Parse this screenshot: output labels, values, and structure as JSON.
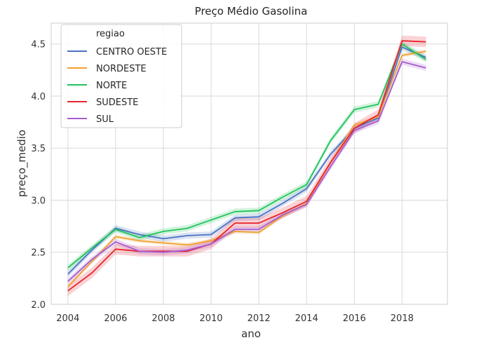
{
  "chart_data": {
    "type": "line",
    "title": "Preço Médio Gasolina",
    "xlabel": "ano",
    "ylabel": "preço_medio",
    "xlim": [
      2003.3,
      2019.9
    ],
    "ylim": [
      2.0,
      4.7
    ],
    "xticks": [
      2004,
      2006,
      2008,
      2010,
      2012,
      2014,
      2016,
      2018
    ],
    "xtick_labels": [
      "2004",
      "2006",
      "2008",
      "2010",
      "2012",
      "2014",
      "2016",
      "2018"
    ],
    "yticks": [
      2.0,
      2.5,
      3.0,
      3.5,
      4.0,
      4.5
    ],
    "ytick_labels": [
      "2.0",
      "2.5",
      "3.0",
      "3.5",
      "4.0",
      "4.5"
    ],
    "grid": true,
    "legend": {
      "title": "regiao",
      "placement": "top-left"
    },
    "x": [
      2004,
      2005,
      2006,
      2007,
      2008,
      2009,
      2010,
      2011,
      2012,
      2013,
      2014,
      2015,
      2016,
      2017,
      2018,
      2019
    ],
    "series": [
      {
        "name": "CENTRO OESTE",
        "color": "#4c72c4",
        "band": 0.03,
        "values": [
          2.29,
          2.52,
          2.73,
          2.67,
          2.63,
          2.66,
          2.67,
          2.83,
          2.84,
          2.97,
          3.11,
          3.44,
          3.69,
          3.79,
          4.47,
          4.37
        ]
      },
      {
        "name": "NORDESTE",
        "color": "#f0a030",
        "band": 0.02,
        "values": [
          2.17,
          2.41,
          2.65,
          2.61,
          2.59,
          2.57,
          2.61,
          2.7,
          2.69,
          2.85,
          2.97,
          3.36,
          3.72,
          3.8,
          4.39,
          4.43
        ]
      },
      {
        "name": "NORTE",
        "color": "#1fc45a",
        "band": 0.03,
        "values": [
          2.35,
          2.54,
          2.72,
          2.64,
          2.7,
          2.73,
          2.81,
          2.89,
          2.9,
          3.03,
          3.15,
          3.57,
          3.87,
          3.92,
          4.5,
          4.35
        ]
      },
      {
        "name": "SUDESTE",
        "color": "#e8242e",
        "band": 0.05,
        "values": [
          2.13,
          2.3,
          2.53,
          2.51,
          2.51,
          2.51,
          2.58,
          2.78,
          2.78,
          2.88,
          2.99,
          3.36,
          3.69,
          3.82,
          4.53,
          4.52
        ]
      },
      {
        "name": "SUL",
        "color": "#a55cd0",
        "band": 0.03,
        "values": [
          2.22,
          2.43,
          2.6,
          2.51,
          2.5,
          2.52,
          2.58,
          2.72,
          2.72,
          2.86,
          2.96,
          3.32,
          3.67,
          3.76,
          4.33,
          4.27
        ]
      }
    ]
  }
}
